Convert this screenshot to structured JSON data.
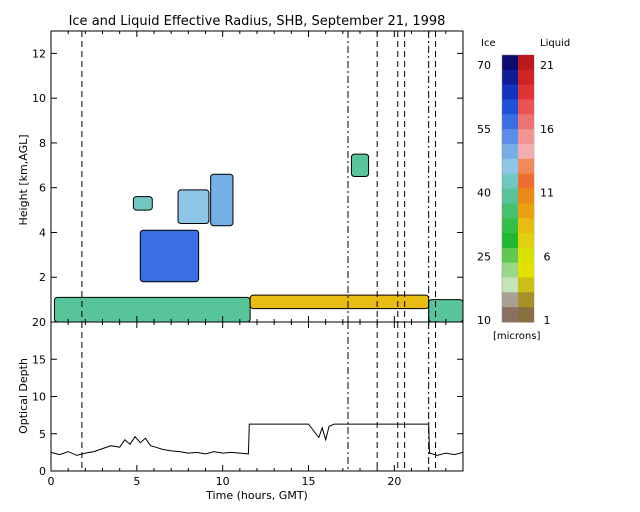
{
  "chart_data": [
    {
      "type": "heatmap",
      "title": "Ice and Liquid Effective Radius, SHB, September 21, 1998",
      "ylabel": "Height [km,AGL]",
      "xlim": [
        0,
        24
      ],
      "ylim": [
        0,
        13
      ],
      "x_ticks": [
        "0",
        "5",
        "10",
        "15",
        "20"
      ],
      "y_ticks": [
        "2",
        "4",
        "6",
        "8",
        "10",
        "12"
      ],
      "colorbar": {
        "ice_label": "Ice",
        "liquid_label": "Liquid",
        "ice_ticks": [
          "70",
          "55",
          "40",
          "25",
          "10"
        ],
        "liquid_ticks": [
          "21",
          "16",
          "11",
          "6",
          "1"
        ],
        "units": "[microns]",
        "ice_colors": [
          "#0c0c6e",
          "#101c96",
          "#1434c0",
          "#2050d8",
          "#3a6ee2",
          "#5a8ee8",
          "#76aee6",
          "#8ec6e8",
          "#70c8c0",
          "#58c49a",
          "#48c070",
          "#34c048",
          "#20b830",
          "#60c850",
          "#98d888",
          "#c4e4b8",
          "#a8a090",
          "#8a7060"
        ],
        "liquid_colors": [
          "#ba1a1a",
          "#d02424",
          "#e03434",
          "#ea5454",
          "#ee7474",
          "#f09494",
          "#f2aeae",
          "#f08a5a",
          "#ec6e30",
          "#ea8a14",
          "#e8a010",
          "#e8bc10",
          "#e0d010",
          "#d8e000",
          "#e4e000",
          "#c8c018",
          "#a89028",
          "#8a7040"
        ]
      },
      "cloud_regions": [
        {
          "phase": "ice",
          "x": [
            0.2,
            11.6
          ],
          "y": [
            0.0,
            1.1
          ],
          "radius_um": 40
        },
        {
          "phase": "ice",
          "x": [
            5.2,
            8.6
          ],
          "y": [
            1.8,
            4.1
          ],
          "radius_um": 55
        },
        {
          "phase": "ice",
          "x": [
            4.8,
            5.9
          ],
          "y": [
            5.0,
            5.6
          ],
          "radius_um": 42
        },
        {
          "phase": "ice",
          "x": [
            7.4,
            9.2
          ],
          "y": [
            4.4,
            5.9
          ],
          "radius_um": 45
        },
        {
          "phase": "ice",
          "x": [
            9.3,
            10.6
          ],
          "y": [
            4.3,
            6.6
          ],
          "radius_um": 50
        },
        {
          "phase": "ice",
          "x": [
            17.5,
            18.5
          ],
          "y": [
            6.5,
            7.5
          ],
          "radius_um": 38
        },
        {
          "phase": "liquid",
          "x": [
            11.6,
            22.0
          ],
          "y": [
            0.6,
            1.2
          ],
          "radius_um": 8
        },
        {
          "phase": "ice",
          "x": [
            22.0,
            24.0
          ],
          "y": [
            0.0,
            1.0
          ],
          "radius_um": 40
        }
      ],
      "vertical_markers": [
        {
          "time": 1.8,
          "style": "dashed"
        },
        {
          "time": 17.3,
          "style": "dash-dot"
        },
        {
          "time": 19.0,
          "style": "dashed"
        },
        {
          "time": 20.2,
          "style": "dashed"
        },
        {
          "time": 20.6,
          "style": "dashed"
        },
        {
          "time": 22.0,
          "style": "dash-dot"
        },
        {
          "time": 22.4,
          "style": "dashed"
        }
      ]
    },
    {
      "type": "line",
      "ylabel": "Optical Depth",
      "xlabel": "Time (hours, GMT)",
      "xlim": [
        0,
        24
      ],
      "ylim": [
        0,
        20
      ],
      "x_ticks": [
        "0",
        "5",
        "10",
        "15",
        "20"
      ],
      "y_ticks": [
        "0",
        "5",
        "10",
        "15",
        "20"
      ],
      "series": [
        {
          "x": [
            0,
            0.5,
            1.0,
            1.5,
            2.0,
            2.5,
            3.0,
            3.5,
            4.0,
            4.3,
            4.6,
            4.9,
            5.2,
            5.5,
            5.8,
            6.1,
            6.5,
            7.0,
            7.5,
            8.0,
            8.5,
            9.0,
            9.5,
            10.0,
            10.5,
            11.0,
            11.5,
            11.55,
            12.0,
            13.0,
            14.0,
            15.0,
            15.6,
            15.8,
            16.0,
            16.2,
            16.5,
            17.0,
            18.0,
            19.0,
            20.0,
            21.0,
            22.0,
            22.05,
            22.5,
            23.0,
            23.5,
            24.0
          ],
          "y": [
            2.5,
            2.2,
            2.6,
            2.1,
            2.4,
            2.6,
            3.0,
            3.4,
            3.2,
            4.2,
            3.6,
            4.6,
            3.8,
            4.4,
            3.4,
            3.2,
            2.9,
            2.7,
            2.6,
            2.4,
            2.5,
            2.3,
            2.6,
            2.4,
            2.5,
            2.4,
            2.3,
            6.3,
            6.3,
            6.3,
            6.3,
            6.3,
            4.5,
            5.8,
            4.2,
            6.0,
            6.3,
            6.3,
            6.3,
            6.3,
            6.3,
            6.3,
            6.3,
            2.4,
            2.1,
            2.4,
            2.2,
            2.5
          ]
        }
      ],
      "vertical_markers": [
        1.8,
        17.3,
        19.0,
        20.2,
        20.6,
        22.0,
        22.4
      ]
    }
  ]
}
